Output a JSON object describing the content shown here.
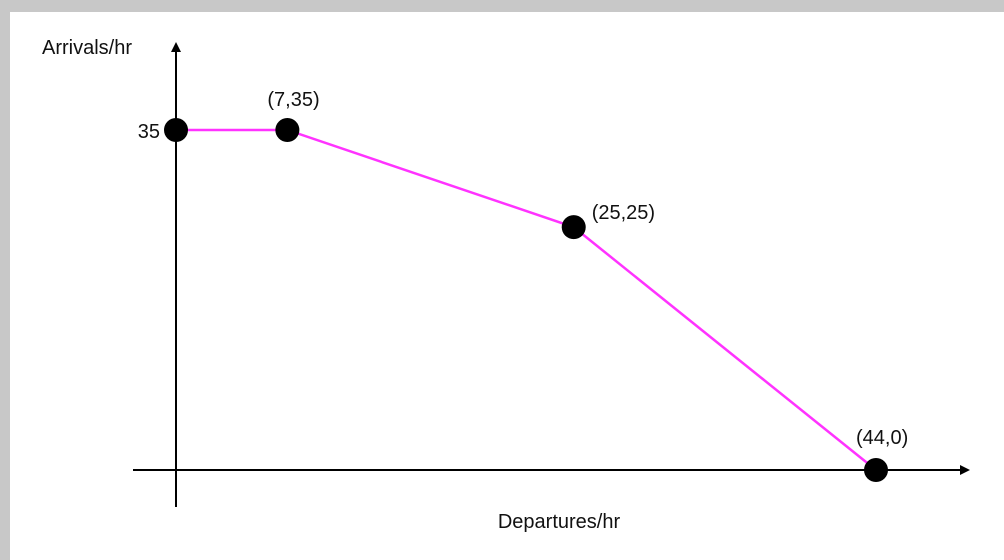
{
  "chart_data": {
    "type": "line",
    "xlabel": "Departures/hr",
    "ylabel": "Arrivals/hr",
    "xlim": [
      0,
      44
    ],
    "ylim": [
      0,
      35
    ],
    "y_ticks": [
      {
        "value": 35,
        "label": "35"
      }
    ],
    "series": [
      {
        "color": "#ff33ff",
        "points": [
          {
            "x": 0,
            "y": 35,
            "label": ""
          },
          {
            "x": 7,
            "y": 35,
            "label": "(7,35)"
          },
          {
            "x": 25,
            "y": 25,
            "label": "(25,25)"
          },
          {
            "x": 44,
            "y": 0,
            "label": "(44,0)"
          }
        ]
      }
    ],
    "marker_color": "#000000",
    "axis_color": "#000000",
    "grid": false
  }
}
